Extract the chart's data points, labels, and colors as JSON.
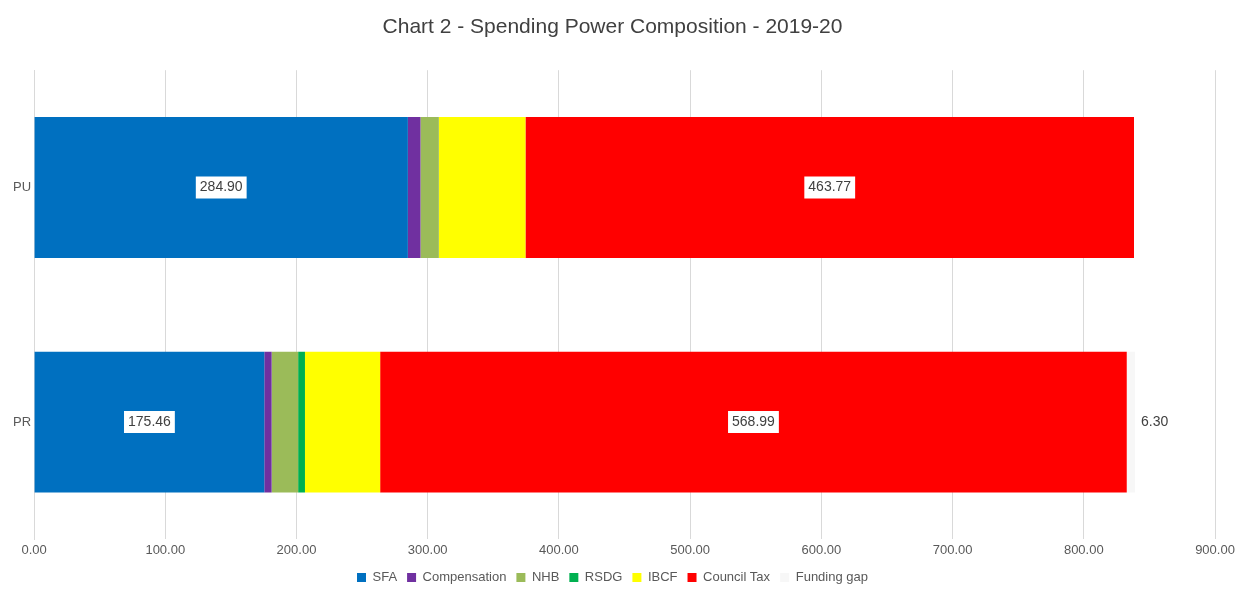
{
  "chart_data": {
    "type": "bar",
    "orientation": "horizontal",
    "stacked": true,
    "title": "Chart 2 - Spending Power Composition - 2019-20",
    "categories": [
      "PU",
      "PR"
    ],
    "series": [
      {
        "name": "SFA",
        "color": "#0070c0",
        "values": [
          284.9,
          175.46
        ],
        "value_labels": [
          "284.90",
          "175.46"
        ]
      },
      {
        "name": "Compensation",
        "color": "#7030a0",
        "values": [
          9.6,
          5.6
        ]
      },
      {
        "name": "NHB",
        "color": "#9bbb59",
        "values": [
          14,
          20.2
        ]
      },
      {
        "name": "RSDG",
        "color": "#00b050",
        "values": [
          null,
          5.2
        ]
      },
      {
        "name": "IBCF",
        "color": "#ffff00",
        "values": [
          66,
          57.3
        ]
      },
      {
        "name": "Council Tax",
        "color": "#ff0000",
        "values": [
          463.77,
          568.99
        ],
        "value_labels": [
          "463.77",
          "568.99"
        ]
      },
      {
        "name": "Funding gap",
        "color": "#f7f7f7",
        "values": [
          null,
          6.3
        ],
        "value_labels": [
          null,
          "6.30"
        ]
      }
    ],
    "xlim": [
      0,
      900
    ],
    "xticks": [
      {
        "value": 0,
        "label": "0.00"
      },
      {
        "value": 100,
        "label": "100.00"
      },
      {
        "value": 200,
        "label": "200.00"
      },
      {
        "value": 300,
        "label": "300.00"
      },
      {
        "value": 400,
        "label": "400.00"
      },
      {
        "value": 500,
        "label": "500.00"
      },
      {
        "value": 600,
        "label": "600.00"
      },
      {
        "value": 700,
        "label": "700.00"
      },
      {
        "value": 800,
        "label": "800.00"
      },
      {
        "value": 900,
        "label": "900.00"
      }
    ],
    "grid": "x",
    "legend": "bottom"
  }
}
